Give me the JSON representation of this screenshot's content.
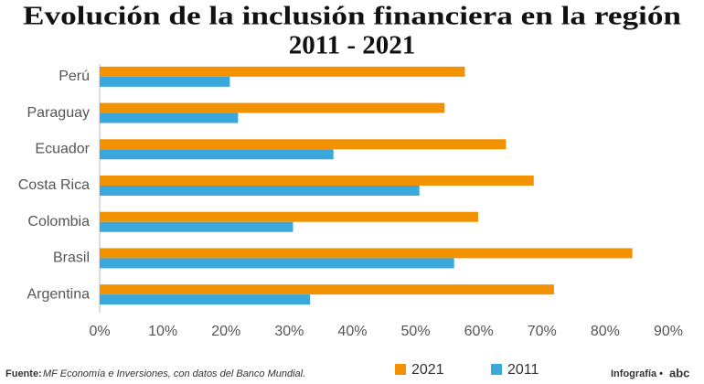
{
  "chart_data": {
    "type": "hbar",
    "title": [
      "Evolución de la inclusión financiera en la región",
      "2011 - 2021"
    ],
    "categories": [
      "Perú",
      "Paraguay",
      "Ecuador",
      "Costa Rica",
      "Colombia",
      "Brasil",
      "Argentina"
    ],
    "series": [
      {
        "name": "2021",
        "color": "#f39200",
        "values": [
          57.8,
          54.6,
          64.3,
          68.7,
          59.9,
          84.3,
          71.9
        ]
      },
      {
        "name": "2011",
        "color": "#3aa8dc",
        "values": [
          20.6,
          21.9,
          37.0,
          50.6,
          30.6,
          56.1,
          33.3
        ]
      }
    ],
    "xlim": [
      0,
      90
    ],
    "xticks": [
      {
        "value": 0,
        "label": "0%"
      },
      {
        "value": 10,
        "label": "10%"
      },
      {
        "value": 20,
        "label": "20%"
      },
      {
        "value": 30,
        "label": "30%"
      },
      {
        "value": 40,
        "label": "40%"
      },
      {
        "value": 50,
        "label": "50%"
      },
      {
        "value": 60,
        "label": "60%"
      },
      {
        "value": 70,
        "label": "70%"
      },
      {
        "value": 80,
        "label": "80%"
      },
      {
        "value": 90,
        "label": "90%"
      }
    ],
    "legend": "bottom-right",
    "source_label": "Fuente:",
    "source": "MF Economía e Inversiones, con datos del Banco Mundial.",
    "credit": "Infografía •",
    "logo": "abc"
  }
}
